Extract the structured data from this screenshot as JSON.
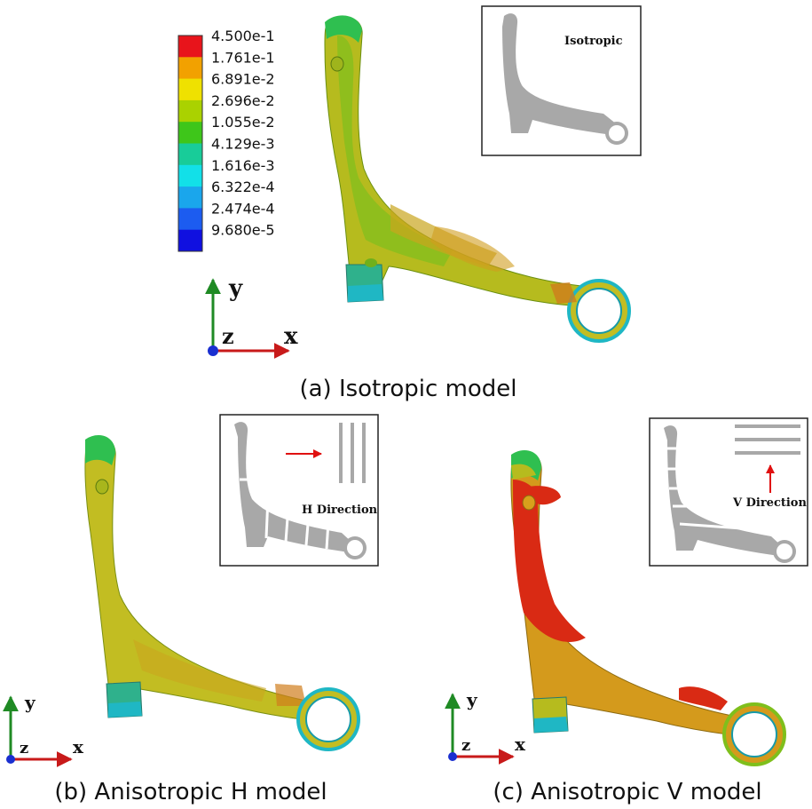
{
  "legend": {
    "values": [
      "4.500e-1",
      "1.761e-1",
      "6.891e-2",
      "2.696e-2",
      "1.055e-2",
      "4.129e-3",
      "1.616e-3",
      "6.322e-4",
      "2.474e-4",
      "9.680e-5"
    ],
    "colors": [
      "#e8141b",
      "#f2a100",
      "#efe100",
      "#aad200",
      "#3ec61a",
      "#18cc99",
      "#12e0e8",
      "#1aa6ec",
      "#1c5cf0",
      "#1010e0"
    ]
  },
  "panels": {
    "a": {
      "caption": "(a) Isotropic model",
      "inset_label": "Isotropic"
    },
    "b": {
      "caption": "(b) Anisotropic H model",
      "inset_label": "H Direction"
    },
    "c": {
      "caption": "(c) Anisotropic V model",
      "inset_label": "V Direction"
    }
  },
  "axes": {
    "x": "x",
    "y": "y",
    "z": "z"
  },
  "colors": {
    "part_yellow": "#c2bd22",
    "part_green": "#7fbb1c",
    "part_orange": "#d49a1c",
    "part_red": "#d92a14",
    "ring_cyan": "#1fb7c4",
    "inset_gray": "#a8a8a8",
    "arrow_red": "#e01010",
    "axis_green": "#1f8a24",
    "axis_red": "#c81a1a",
    "axis_blue": "#1a2fd0"
  }
}
